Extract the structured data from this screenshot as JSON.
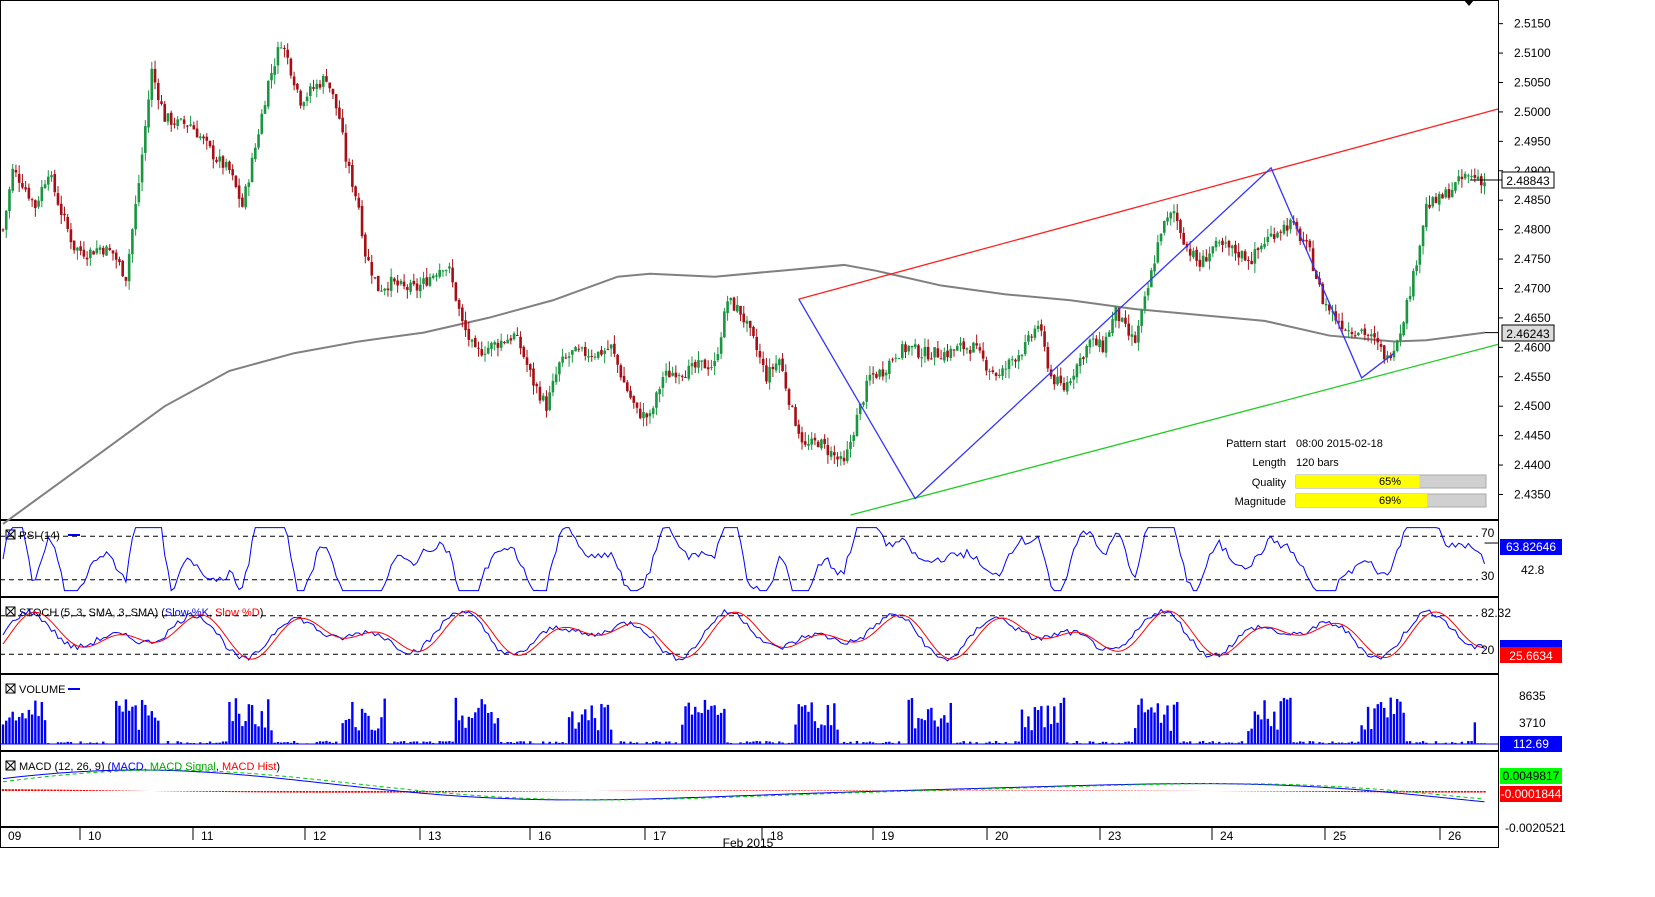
{
  "chart_data": {
    "type": "candlestick",
    "symbol_hidden": true,
    "xaxis": {
      "day_labels": [
        "09",
        "10",
        "11",
        "12",
        "13",
        "16",
        "17",
        "18",
        "19",
        "20",
        "23",
        "24",
        "25",
        "26"
      ],
      "month_label": "Feb 2015"
    },
    "price_panel": {
      "yticks": [
        "2.5150",
        "2.5100",
        "2.5050",
        "2.5000",
        "2.4950",
        "2.4900",
        "2.4850",
        "2.4800",
        "2.4750",
        "2.4700",
        "2.4650",
        "2.4600",
        "2.4550",
        "2.4500",
        "2.4450",
        "2.4400",
        "2.4350"
      ],
      "ylim": [
        2.431,
        2.518
      ],
      "last_price": "2.48843",
      "sma_value": "2.46243",
      "close_path": [
        [
          0,
          2.48
        ],
        [
          3,
          2.49
        ],
        [
          6,
          2.488
        ],
        [
          10,
          2.484
        ],
        [
          14,
          2.49
        ],
        [
          18,
          2.483
        ],
        [
          22,
          2.477
        ],
        [
          26,
          2.476
        ],
        [
          30,
          2.477
        ],
        [
          34,
          2.476
        ],
        [
          38,
          2.472
        ],
        [
          42,
          2.488
        ],
        [
          46,
          2.507
        ],
        [
          50,
          2.499
        ],
        [
          54,
          2.498
        ],
        [
          58,
          2.498
        ],
        [
          62,
          2.495
        ],
        [
          66,
          2.492
        ],
        [
          70,
          2.49
        ],
        [
          74,
          2.484
        ],
        [
          78,
          2.494
        ],
        [
          82,
          2.505
        ],
        [
          86,
          2.512
        ],
        [
          88,
          2.509
        ],
        [
          92,
          2.502
        ],
        [
          96,
          2.504
        ],
        [
          100,
          2.506
        ],
        [
          104,
          2.499
        ],
        [
          106,
          2.492
        ],
        [
          110,
          2.484
        ],
        [
          112,
          2.476
        ],
        [
          116,
          2.47
        ],
        [
          120,
          2.471
        ],
        [
          124,
          2.47
        ],
        [
          128,
          2.47
        ],
        [
          132,
          2.472
        ],
        [
          136,
          2.474
        ],
        [
          138,
          2.473
        ],
        [
          142,
          2.464
        ],
        [
          146,
          2.459
        ],
        [
          150,
          2.46
        ],
        [
          154,
          2.461
        ],
        [
          158,
          2.462
        ],
        [
          160,
          2.46
        ],
        [
          164,
          2.454
        ],
        [
          168,
          2.45
        ],
        [
          172,
          2.457
        ],
        [
          176,
          2.459
        ],
        [
          180,
          2.459
        ],
        [
          184,
          2.459
        ],
        [
          188,
          2.46
        ],
        [
          192,
          2.454
        ],
        [
          196,
          2.449
        ],
        [
          200,
          2.448
        ],
        [
          204,
          2.455
        ],
        [
          208,
          2.456
        ],
        [
          212,
          2.456
        ],
        [
          216,
          2.457
        ],
        [
          220,
          2.457
        ],
        [
          224,
          2.468
        ],
        [
          228,
          2.466
        ],
        [
          232,
          2.461
        ],
        [
          236,
          2.455
        ],
        [
          240,
          2.458
        ],
        [
          244,
          2.449
        ],
        [
          248,
          2.443
        ],
        [
          252,
          2.444
        ],
        [
          256,
          2.442
        ],
        [
          260,
          2.44
        ],
        [
          264,
          2.448
        ],
        [
          268,
          2.455
        ],
        [
          272,
          2.456
        ],
        [
          276,
          2.459
        ],
        [
          280,
          2.46
        ],
        [
          284,
          2.459
        ],
        [
          288,
          2.459
        ],
        [
          292,
          2.459
        ],
        [
          296,
          2.46
        ],
        [
          300,
          2.46
        ],
        [
          304,
          2.457
        ],
        [
          308,
          2.455
        ],
        [
          312,
          2.458
        ],
        [
          316,
          2.46
        ],
        [
          320,
          2.464
        ],
        [
          324,
          2.455
        ],
        [
          328,
          2.453
        ],
        [
          332,
          2.457
        ],
        [
          336,
          2.461
        ],
        [
          340,
          2.46
        ],
        [
          344,
          2.466
        ],
        [
          348,
          2.462
        ],
        [
          350,
          2.461
        ],
        [
          354,
          2.47
        ],
        [
          358,
          2.48
        ],
        [
          362,
          2.483
        ],
        [
          366,
          2.477
        ],
        [
          370,
          2.474
        ],
        [
          374,
          2.477
        ],
        [
          378,
          2.477
        ],
        [
          382,
          2.476
        ],
        [
          386,
          2.475
        ],
        [
          390,
          2.478
        ],
        [
          394,
          2.48
        ],
        [
          398,
          2.481
        ],
        [
          402,
          2.478
        ],
        [
          404,
          2.476
        ],
        [
          408,
          2.468
        ],
        [
          412,
          2.465
        ],
        [
          416,
          2.463
        ],
        [
          420,
          2.463
        ],
        [
          424,
          2.461
        ],
        [
          428,
          2.458
        ],
        [
          432,
          2.463
        ],
        [
          436,
          2.472
        ],
        [
          440,
          2.484
        ],
        [
          444,
          2.485
        ],
        [
          448,
          2.487
        ],
        [
          452,
          2.489
        ],
        [
          456,
          2.489
        ],
        [
          458,
          2.488
        ]
      ],
      "sma_path": [
        [
          0,
          2.43
        ],
        [
          10,
          2.434
        ],
        [
          30,
          2.442
        ],
        [
          50,
          2.45
        ],
        [
          70,
          2.456
        ],
        [
          90,
          2.459
        ],
        [
          110,
          2.461
        ],
        [
          130,
          2.4625
        ],
        [
          150,
          2.465
        ],
        [
          170,
          2.468
        ],
        [
          190,
          2.472
        ],
        [
          200,
          2.4725
        ],
        [
          220,
          2.472
        ],
        [
          240,
          2.473
        ],
        [
          260,
          2.474
        ],
        [
          270,
          2.473
        ],
        [
          290,
          2.4705
        ],
        [
          310,
          2.469
        ],
        [
          330,
          2.468
        ],
        [
          350,
          2.4665
        ],
        [
          370,
          2.4655
        ],
        [
          390,
          2.4645
        ],
        [
          410,
          2.462
        ],
        [
          430,
          2.461
        ],
        [
          440,
          2.4612
        ],
        [
          458,
          2.4625
        ]
      ],
      "channel_upper": {
        "start": [
          246,
          2.4682
        ],
        "end": [
          460,
          2.5005
        ]
      },
      "channel_lower": {
        "start": [
          262,
          2.4315
        ],
        "end": [
          460,
          2.4605
        ]
      },
      "zigzag": [
        [
          246,
          2.4682
        ],
        [
          282,
          2.4343
        ],
        [
          392,
          2.4905
        ],
        [
          420,
          2.4548
        ],
        [
          430,
          2.459
        ]
      ]
    },
    "pattern_info": {
      "pattern_start_label": "Pattern start",
      "pattern_start_value": "08:00 2015-02-18",
      "length_label": "Length",
      "length_value": "120 bars",
      "quality_label": "Quality",
      "quality_value": "65%",
      "quality_fraction": 0.65,
      "magnitude_label": "Magnitude",
      "magnitude_value": "69%",
      "magnitude_fraction": 0.69
    },
    "indicators": {
      "rsi": {
        "title": "RSI (14)",
        "levels": [
          "70",
          "42.8",
          "30"
        ],
        "value": "63.82646",
        "ylim": [
          15,
          85
        ]
      },
      "stoch": {
        "title": "STOCH (5, 3, SMA, 3, SMA)",
        "k_label": "Slow %K",
        "d_label": "Slow %D",
        "levels": [
          "82.32",
          "20"
        ],
        "value": "25.6634",
        "ylim": [
          0,
          100
        ]
      },
      "volume": {
        "title": "VOLUME",
        "levels": [
          "8635",
          "3710"
        ],
        "value": "112.69",
        "ymax": 12000
      },
      "macd": {
        "title": "MACD (12, 26, 9)",
        "macd_label": "MACD",
        "signal_label": "MACD Signal",
        "hist_label": "MACD Hist",
        "value_main": "0.0049817",
        "value_hist": "-0.0001844",
        "value_hidden": "-0.0020521"
      }
    },
    "colors": {
      "bull": "#1a9641",
      "bear": "#a50f15",
      "sma": "#808080",
      "upper": "#ff2020",
      "lower": "#22cc22",
      "zigzag": "#3333ff",
      "blue": "#0000ff",
      "red": "#ff0000",
      "green": "#00cc00",
      "gold": "#ffff00"
    }
  }
}
